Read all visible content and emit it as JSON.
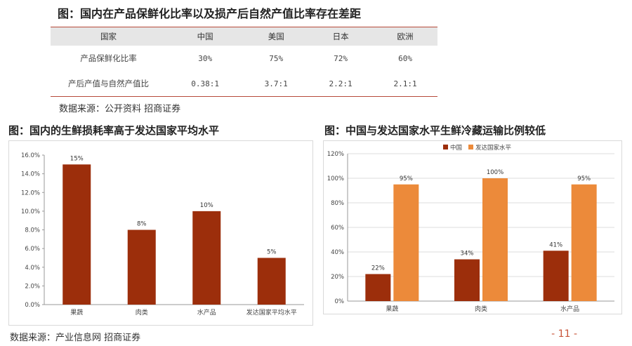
{
  "header": {
    "title": "图：国内在产品保鲜化比率以及损产后自然产值比率存在差距"
  },
  "comparison_table": {
    "columns": [
      "国家",
      "中国",
      "美国",
      "日本",
      "欧洲"
    ],
    "rows": [
      {
        "label": "产品保鲜化比率",
        "values": [
          "30%",
          "75%",
          "72%",
          "60%"
        ]
      },
      {
        "label": "产后产值与自然产值比",
        "values": [
          "0.38:1",
          "3.7:1",
          "2.2:1",
          "2.1:1"
        ]
      }
    ]
  },
  "source_top": "数据来源：公开资料 招商证券",
  "left_chart_title": "图：国内的生鲜损耗率高于发达国家平均水平",
  "right_chart_title": "图：中国与发达国家水平生鲜冷藏运输比例较低",
  "source_bottom": "数据来源：产业信息网 招商证券",
  "page_number": "- 11 -",
  "colors": {
    "dark_bar": "#9c2e0b",
    "light_bar": "#ec8a3a",
    "accent_line": "#b64a3a",
    "page_number": "#c8553a"
  },
  "chart_data": [
    {
      "type": "bar",
      "title": "图：国内的生鲜损耗率高于发达国家平均水平",
      "categories": [
        "果蔬",
        "肉类",
        "水产品",
        "发达国家平均水平"
      ],
      "values": [
        15,
        8,
        10,
        5
      ],
      "data_labels": [
        "15%",
        "8%",
        "10%",
        "5%"
      ],
      "y_ticks": [
        "0.0%",
        "2.0%",
        "4.0%",
        "6.0%",
        "8.0%",
        "10.0%",
        "12.0%",
        "14.0%",
        "16.0%"
      ],
      "ylim": [
        0,
        16
      ],
      "grid": false,
      "color": "#9c2e0b"
    },
    {
      "type": "bar",
      "title": "图：中国与发达国家水平生鲜冷藏运输比例较低",
      "categories": [
        "果蔬",
        "肉类",
        "水产品"
      ],
      "series": [
        {
          "name": "中国",
          "values": [
            22,
            34,
            41
          ],
          "data_labels": [
            "22%",
            "34%",
            "41%"
          ],
          "color": "#9c2e0b"
        },
        {
          "name": "发达国家水平",
          "values": [
            95,
            100,
            95
          ],
          "data_labels": [
            "95%",
            "100%",
            "95%"
          ],
          "color": "#ec8a3a"
        }
      ],
      "y_ticks": [
        "0%",
        "20%",
        "40%",
        "60%",
        "80%",
        "100%",
        "120%"
      ],
      "ylim": [
        0,
        120
      ],
      "grid": true,
      "legend": "top"
    }
  ]
}
